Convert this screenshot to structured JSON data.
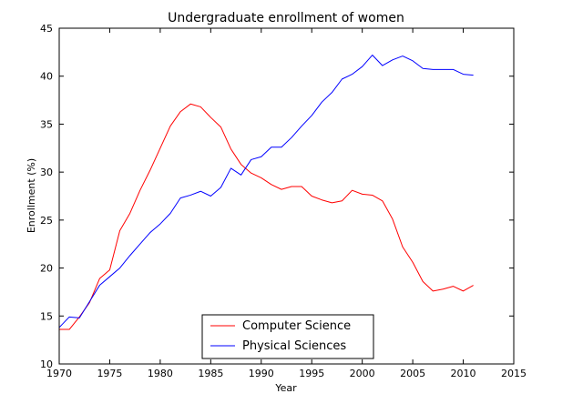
{
  "chart_data": {
    "type": "line",
    "title": "Undergraduate enrollment of women",
    "xlabel": "Year",
    "ylabel": "Enrollment (%)",
    "xlim": [
      1970,
      2015
    ],
    "ylim": [
      10,
      45
    ],
    "xticks": [
      1970,
      1975,
      1980,
      1985,
      1990,
      1995,
      2000,
      2005,
      2010,
      2015
    ],
    "yticks": [
      10,
      15,
      20,
      25,
      30,
      35,
      40,
      45
    ],
    "grid": false,
    "legend_position": "lower-center",
    "x": [
      1970,
      1971,
      1972,
      1973,
      1974,
      1975,
      1976,
      1977,
      1978,
      1979,
      1980,
      1981,
      1982,
      1983,
      1984,
      1985,
      1986,
      1987,
      1988,
      1989,
      1990,
      1991,
      1992,
      1993,
      1994,
      1995,
      1996,
      1997,
      1998,
      1999,
      2000,
      2001,
      2002,
      2003,
      2004,
      2005,
      2006,
      2007,
      2008,
      2009,
      2010,
      2011
    ],
    "series": [
      {
        "name": "Computer Science",
        "color": "#ff0000",
        "values": [
          13.6,
          13.6,
          14.9,
          16.4,
          18.9,
          19.8,
          23.9,
          25.7,
          28.1,
          30.2,
          32.5,
          34.8,
          36.3,
          37.1,
          36.8,
          35.7,
          34.7,
          32.4,
          30.8,
          29.9,
          29.4,
          28.7,
          28.2,
          28.5,
          28.5,
          27.5,
          27.1,
          26.8,
          27.0,
          28.1,
          27.7,
          27.6,
          27.0,
          25.1,
          22.2,
          20.6,
          18.6,
          17.6,
          17.8,
          18.1,
          17.6,
          18.2
        ]
      },
      {
        "name": "Physical Sciences",
        "color": "#0000ff",
        "values": [
          13.8,
          14.9,
          14.8,
          16.5,
          18.2,
          19.1,
          20.0,
          21.3,
          22.5,
          23.7,
          24.6,
          25.7,
          27.3,
          27.6,
          28.0,
          27.5,
          28.4,
          30.4,
          29.7,
          31.3,
          31.6,
          32.6,
          32.6,
          33.6,
          34.8,
          35.9,
          37.3,
          38.3,
          39.7,
          40.2,
          41.0,
          42.2,
          41.1,
          41.7,
          42.1,
          41.6,
          40.8,
          40.7,
          40.7,
          40.7,
          40.2,
          40.1
        ]
      }
    ]
  }
}
